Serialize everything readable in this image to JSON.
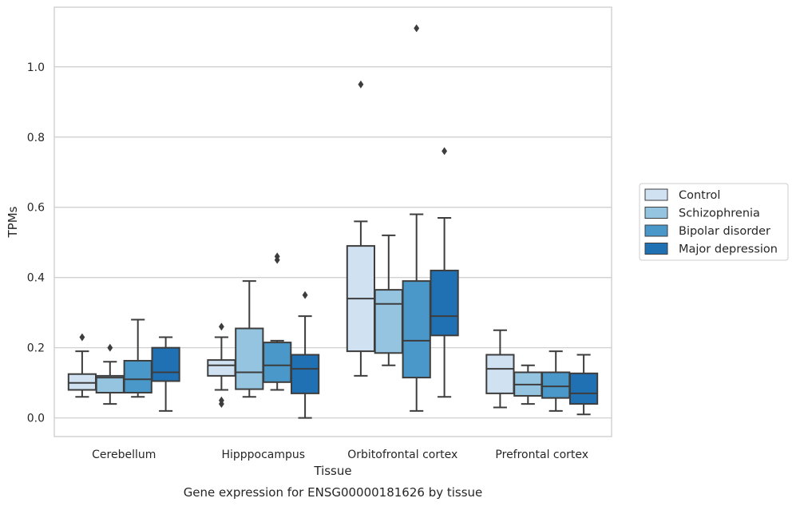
{
  "chart_data": {
    "type": "box",
    "title": "Gene expression for ENSG00000181626 by tissue",
    "xlabel": "Tissue",
    "ylabel": "TPMs",
    "ylim": [
      -0.053,
      1.17
    ],
    "yticks": [
      "0.0",
      "0.2",
      "0.4",
      "0.6",
      "0.8",
      "1.0"
    ],
    "ytick_values": [
      0.0,
      0.2,
      0.4,
      0.6,
      0.8,
      1.0
    ],
    "categories": [
      "Cerebellum",
      "Hipppocampus",
      "Orbitofrontal cortex",
      "Prefrontal cortex"
    ],
    "grid": true,
    "legend_position": "right",
    "series": [
      {
        "name": "Control",
        "color": "#d0e1f2",
        "boxes": [
          {
            "whislo": 0.06,
            "q1": 0.08,
            "med": 0.1,
            "q3": 0.125,
            "whishi": 0.19,
            "fliers": [
              0.23
            ]
          },
          {
            "whislo": 0.08,
            "q1": 0.12,
            "med": 0.15,
            "q3": 0.165,
            "whishi": 0.23,
            "fliers": [
              0.26,
              0.05,
              0.04
            ]
          },
          {
            "whislo": 0.12,
            "q1": 0.19,
            "med": 0.34,
            "q3": 0.49,
            "whishi": 0.56,
            "fliers": [
              0.95
            ]
          },
          {
            "whislo": 0.03,
            "q1": 0.07,
            "med": 0.14,
            "q3": 0.18,
            "whishi": 0.25,
            "fliers": []
          }
        ]
      },
      {
        "name": "Schizophrenia",
        "color": "#94c4df",
        "boxes": [
          {
            "whislo": 0.04,
            "q1": 0.072,
            "med": 0.115,
            "q3": 0.12,
            "whishi": 0.16,
            "fliers": [
              0.2
            ]
          },
          {
            "whislo": 0.06,
            "q1": 0.082,
            "med": 0.13,
            "q3": 0.255,
            "whishi": 0.39,
            "fliers": []
          },
          {
            "whislo": 0.15,
            "q1": 0.185,
            "med": 0.325,
            "q3": 0.365,
            "whishi": 0.52,
            "fliers": []
          },
          {
            "whislo": 0.04,
            "q1": 0.063,
            "med": 0.095,
            "q3": 0.13,
            "whishi": 0.15,
            "fliers": []
          }
        ]
      },
      {
        "name": "Bipolar disorder",
        "color": "#4a98c9",
        "boxes": [
          {
            "whislo": 0.06,
            "q1": 0.072,
            "med": 0.11,
            "q3": 0.163,
            "whishi": 0.28,
            "fliers": []
          },
          {
            "whislo": 0.08,
            "q1": 0.102,
            "med": 0.15,
            "q3": 0.215,
            "whishi": 0.22,
            "fliers": [
              0.45,
              0.46
            ]
          },
          {
            "whislo": 0.02,
            "q1": 0.115,
            "med": 0.22,
            "q3": 0.39,
            "whishi": 0.58,
            "fliers": [
              1.11
            ]
          },
          {
            "whislo": 0.02,
            "q1": 0.057,
            "med": 0.09,
            "q3": 0.13,
            "whishi": 0.19,
            "fliers": []
          }
        ]
      },
      {
        "name": "Major depression",
        "color": "#2070b4",
        "boxes": [
          {
            "whislo": 0.02,
            "q1": 0.105,
            "med": 0.13,
            "q3": 0.2,
            "whishi": 0.23,
            "fliers": []
          },
          {
            "whislo": 0.0,
            "q1": 0.07,
            "med": 0.14,
            "q3": 0.18,
            "whishi": 0.29,
            "fliers": [
              0.35
            ]
          },
          {
            "whislo": 0.06,
            "q1": 0.235,
            "med": 0.29,
            "q3": 0.42,
            "whishi": 0.57,
            "fliers": [
              0.76
            ]
          },
          {
            "whislo": 0.01,
            "q1": 0.04,
            "med": 0.07,
            "q3": 0.127,
            "whishi": 0.18,
            "fliers": []
          }
        ]
      }
    ]
  }
}
